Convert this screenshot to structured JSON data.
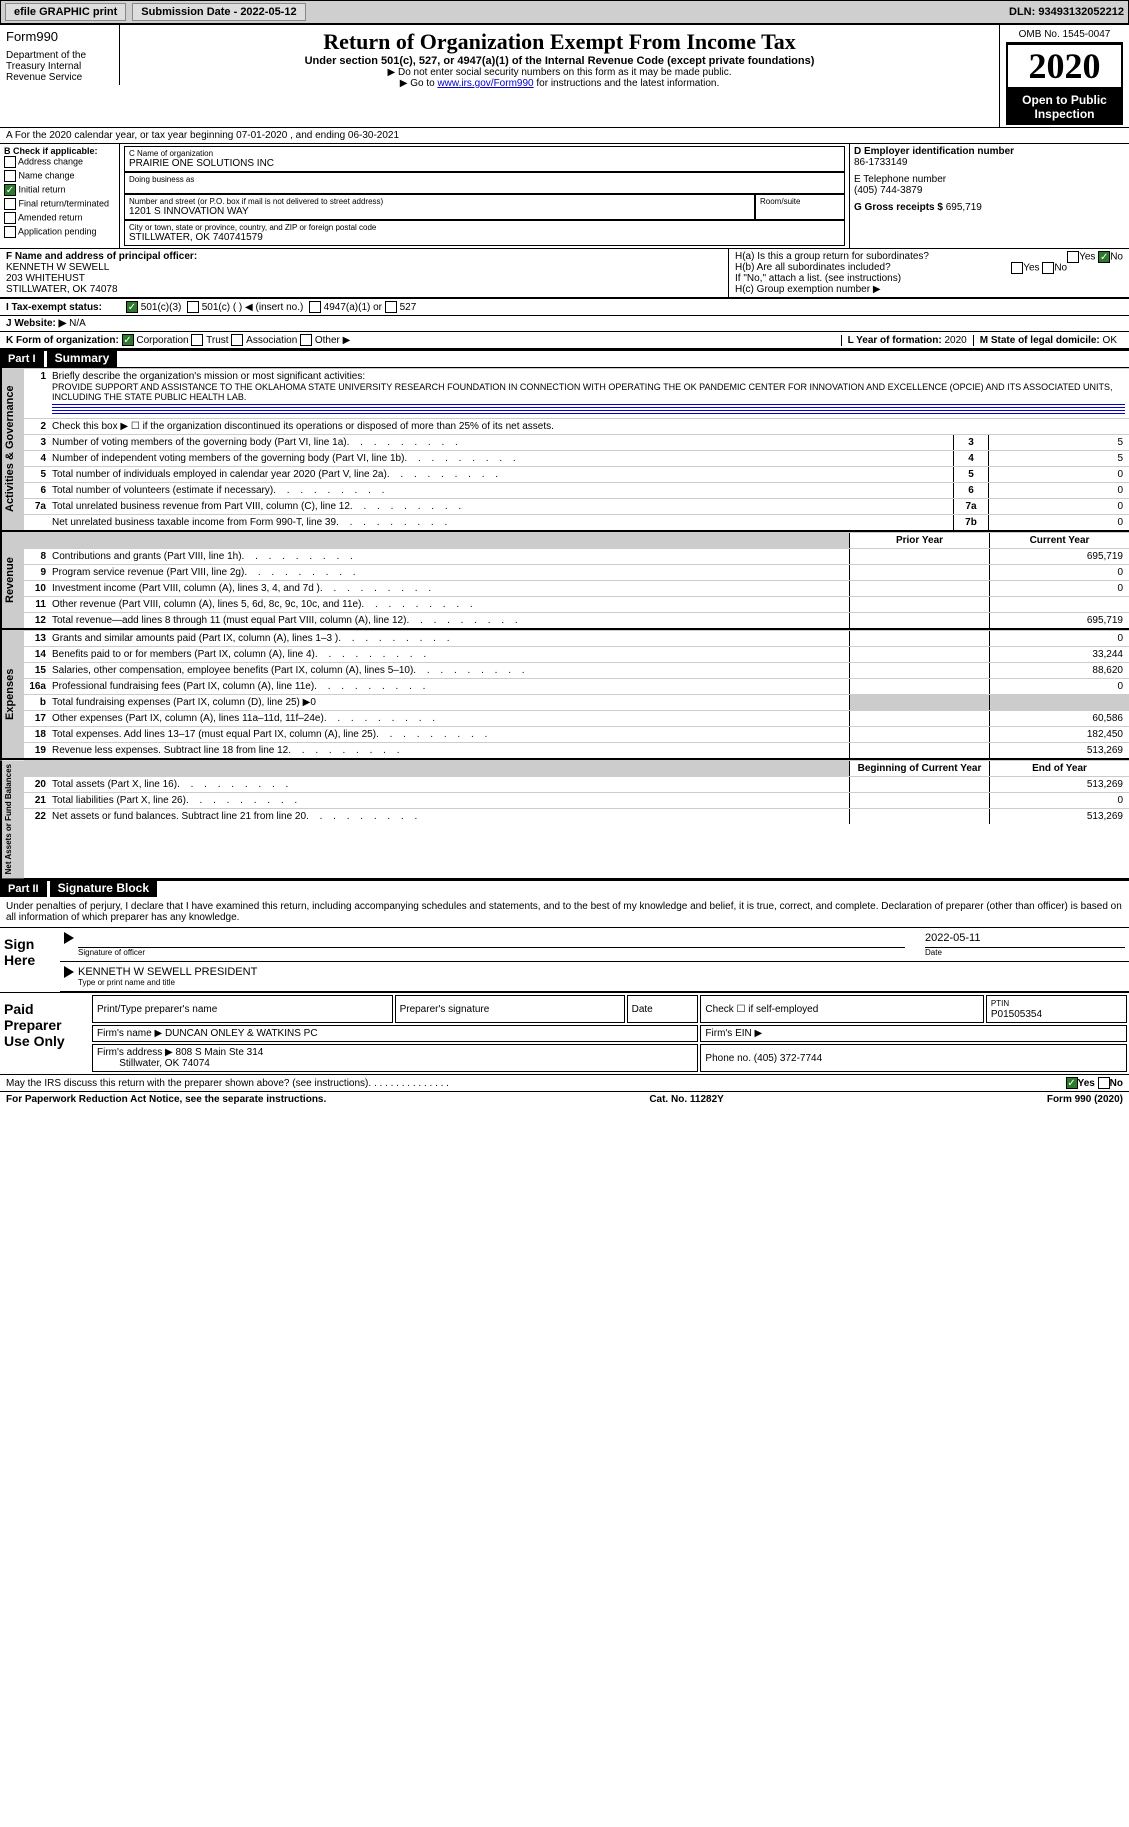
{
  "topbar": {
    "efile": "efile GRAPHIC print",
    "submission_label": "Submission Date - 2022-05-12",
    "dln_label": "DLN: 93493132052212"
  },
  "header": {
    "form_label": "Form",
    "form_num": "990",
    "title": "Return of Organization Exempt From Income Tax",
    "subtitle": "Under section 501(c), 527, or 4947(a)(1) of the Internal Revenue Code (except private foundations)",
    "note1": "▶ Do not enter social security numbers on this form as it may be made public.",
    "note2_prefix": "▶ Go to ",
    "note2_link": "www.irs.gov/Form990",
    "note2_suffix": " for instructions and the latest information.",
    "omb": "OMB No. 1545-0047",
    "year": "2020",
    "public": "Open to Public Inspection",
    "dept": "Department of the Treasury Internal Revenue Service"
  },
  "row_a": "A For the 2020 calendar year, or tax year beginning 07-01-2020    , and ending 06-30-2021",
  "box_b": {
    "header": "B Check if applicable:",
    "options": [
      "Address change",
      "Name change",
      "Initial return",
      "Final return/terminated",
      "Amended return",
      "Application pending"
    ],
    "checked_idx": 2
  },
  "box_c": {
    "name_label": "C Name of organization",
    "name": "PRAIRIE ONE SOLUTIONS INC",
    "dba_label": "Doing business as",
    "addr_label": "Number and street (or P.O. box if mail is not delivered to street address)",
    "room_label": "Room/suite",
    "addr": "1201 S INNOVATION WAY",
    "city_label": "City or town, state or province, country, and ZIP or foreign postal code",
    "city": "STILLWATER, OK  740741579"
  },
  "box_d": {
    "label": "D Employer identification number",
    "value": "86-1733149"
  },
  "box_e": {
    "label": "E Telephone number",
    "value": "(405) 744-3879"
  },
  "box_g": {
    "label": "G Gross receipts $",
    "value": "695,719"
  },
  "box_f": {
    "label": "F  Name and address of principal officer:",
    "name": "KENNETH W SEWELL",
    "addr1": "203 WHITEHUST",
    "addr2": "STILLWATER, OK  74078"
  },
  "box_h": {
    "ha": "H(a)  Is this a group return for subordinates?",
    "hb": "H(b)  Are all subordinates included?",
    "hb_note": "If \"No,\" attach a list. (see instructions)",
    "hc": "H(c)  Group exemption number ▶",
    "ha_answer": "No"
  },
  "row_i": {
    "label": "I  Tax-exempt status:",
    "opt1": "501(c)(3)",
    "opt2": "501(c) (   ) ◀ (insert no.)",
    "opt3": "4947(a)(1) or",
    "opt4": "527"
  },
  "row_j": {
    "label": "J   Website: ▶",
    "value": "N/A"
  },
  "row_k": {
    "label": "K Form of organization:",
    "opts": [
      "Corporation",
      "Trust",
      "Association",
      "Other ▶"
    ]
  },
  "row_l": {
    "label": "L Year of formation:",
    "value": "2020"
  },
  "row_m": {
    "label": "M State of legal domicile:",
    "value": "OK"
  },
  "parts": {
    "p1": "Part I",
    "p1_title": "Summary",
    "p2": "Part II",
    "p2_title": "Signature Block"
  },
  "summary": {
    "q1": "Briefly describe the organization's mission or most significant activities:",
    "mission": "PROVIDE SUPPORT AND ASSISTANCE TO THE OKLAHOMA STATE UNIVERSITY RESEARCH FOUNDATION IN CONNECTION WITH OPERATING THE OK PANDEMIC CENTER FOR INNOVATION AND EXCELLENCE (OPCIE) AND ITS ASSOCIATED UNITS, INCLUDING THE STATE PUBLIC HEALTH LAB.",
    "q2": "Check this box ▶ ☐  if the organization discontinued its operations or disposed of more than 25% of its net assets.",
    "vert1": "Activities & Governance",
    "vert2": "Revenue",
    "vert3": "Expenses",
    "vert4": "Net Assets or Fund Balances",
    "col_prior": "Prior Year",
    "col_current": "Current Year",
    "col_begin": "Beginning of Current Year",
    "col_end": "End of Year",
    "rows_single": [
      {
        "n": "3",
        "t": "Number of voting members of the governing body (Part VI, line 1a)",
        "v": "5"
      },
      {
        "n": "4",
        "t": "Number of independent voting members of the governing body (Part VI, line 1b)",
        "v": "5"
      },
      {
        "n": "5",
        "t": "Total number of individuals employed in calendar year 2020 (Part V, line 2a)",
        "v": "0"
      },
      {
        "n": "6",
        "t": "Total number of volunteers (estimate if necessary)",
        "v": "0"
      },
      {
        "n": "7a",
        "t": "Total unrelated business revenue from Part VIII, column (C), line 12",
        "v": "0"
      },
      {
        "n": "",
        "t": "Net unrelated business taxable income from Form 990-T, line 39",
        "l": "7b",
        "v": "0"
      }
    ],
    "rows_rev": [
      {
        "n": "8",
        "t": "Contributions and grants (Part VIII, line 1h)",
        "p": "",
        "c": "695,719"
      },
      {
        "n": "9",
        "t": "Program service revenue (Part VIII, line 2g)",
        "p": "",
        "c": "0"
      },
      {
        "n": "10",
        "t": "Investment income (Part VIII, column (A), lines 3, 4, and 7d )",
        "p": "",
        "c": "0"
      },
      {
        "n": "11",
        "t": "Other revenue (Part VIII, column (A), lines 5, 6d, 8c, 9c, 10c, and 11e)",
        "p": "",
        "c": ""
      },
      {
        "n": "12",
        "t": "Total revenue—add lines 8 through 11 (must equal Part VIII, column (A), line 12)",
        "p": "",
        "c": "695,719"
      }
    ],
    "rows_exp": [
      {
        "n": "13",
        "t": "Grants and similar amounts paid (Part IX, column (A), lines 1–3 )",
        "p": "",
        "c": "0"
      },
      {
        "n": "14",
        "t": "Benefits paid to or for members (Part IX, column (A), line 4)",
        "p": "",
        "c": "33,244"
      },
      {
        "n": "15",
        "t": "Salaries, other compensation, employee benefits (Part IX, column (A), lines 5–10)",
        "p": "",
        "c": "88,620"
      },
      {
        "n": "16a",
        "t": "Professional fundraising fees (Part IX, column (A), line 11e)",
        "p": "",
        "c": "0"
      },
      {
        "n": "b",
        "t": "Total fundraising expenses (Part IX, column (D), line 25) ▶0",
        "shaded": true
      },
      {
        "n": "17",
        "t": "Other expenses (Part IX, column (A), lines 11a–11d, 11f–24e)",
        "p": "",
        "c": "60,586"
      },
      {
        "n": "18",
        "t": "Total expenses. Add lines 13–17 (must equal Part IX, column (A), line 25)",
        "p": "",
        "c": "182,450"
      },
      {
        "n": "19",
        "t": "Revenue less expenses. Subtract line 18 from line 12",
        "p": "",
        "c": "513,269"
      }
    ],
    "rows_net": [
      {
        "n": "20",
        "t": "Total assets (Part X, line 16)",
        "p": "",
        "c": "513,269"
      },
      {
        "n": "21",
        "t": "Total liabilities (Part X, line 26)",
        "p": "",
        "c": "0"
      },
      {
        "n": "22",
        "t": "Net assets or fund balances. Subtract line 21 from line 20",
        "p": "",
        "c": "513,269"
      }
    ]
  },
  "sig": {
    "declaration": "Under penalties of perjury, I declare that I have examined this return, including accompanying schedules and statements, and to the best of my knowledge and belief, it is true, correct, and complete. Declaration of preparer (other than officer) is based on all information of which preparer has any knowledge.",
    "sign_here": "Sign Here",
    "sig_officer": "Signature of officer",
    "date": "Date",
    "date_val": "2022-05-11",
    "name_title": "KENNETH W SEWELL  PRESIDENT",
    "name_label": "Type or print name and title",
    "paid": "Paid Preparer Use Only",
    "print_name": "Print/Type preparer's name",
    "prep_sig": "Preparer's signature",
    "check_self": "Check ☐ if self-employed",
    "ptin_label": "PTIN",
    "ptin": "P01505354",
    "firm_name_label": "Firm's name   ▶",
    "firm_name": "DUNCAN ONLEY & WATKINS PC",
    "firm_ein": "Firm's EIN ▶",
    "firm_addr_label": "Firm's address ▶",
    "firm_addr": "808 S Main Ste 314",
    "firm_city": "Stillwater, OK  74074",
    "phone_label": "Phone no.",
    "phone": "(405) 372-7744",
    "discuss": "May the IRS discuss this return with the preparer shown above? (see instructions)",
    "discuss_answer": "Yes"
  },
  "footer": {
    "left": "For Paperwork Reduction Act Notice, see the separate instructions.",
    "mid": "Cat. No. 11282Y",
    "right": "Form 990 (2020)"
  }
}
